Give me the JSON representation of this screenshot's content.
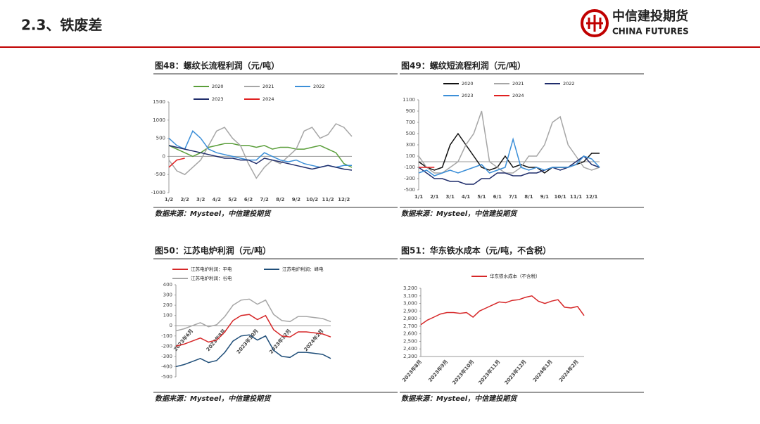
{
  "header": {
    "title": "2.3、铁废差",
    "logo_cn": "中信建投期货",
    "logo_en": "CHINA FUTURES"
  },
  "chart_data": [
    {
      "type": "line",
      "title": "图48：螺纹长流程利润（元/吨）",
      "source": "数据来源：Mysteel，中信建投期货",
      "categories": [
        "1/2",
        null,
        "2/2",
        null,
        "3/2",
        null,
        "4/2",
        null,
        "5/2",
        null,
        "6/2",
        null,
        "7/2",
        null,
        "8/2",
        null,
        "9/2",
        null,
        "10/2",
        null,
        "11/2",
        null,
        "12/2",
        null
      ],
      "series": [
        {
          "name": "2020",
          "color": "#5a9e3a",
          "values": [
            300,
            200,
            100,
            0,
            100,
            250,
            300,
            350,
            350,
            300,
            300,
            250,
            300,
            200,
            250,
            250,
            200,
            200,
            250,
            300,
            200,
            100,
            -200,
            -300
          ]
        },
        {
          "name": "2021",
          "color": "#a6a6a6",
          "values": [
            -100,
            -400,
            -500,
            -300,
            -100,
            300,
            700,
            800,
            500,
            300,
            -200,
            -600,
            -300,
            -100,
            -200,
            0,
            200,
            700,
            800,
            500,
            600,
            900,
            800,
            550
          ]
        },
        {
          "name": "2022",
          "color": "#3c8fd8",
          "values": [
            500,
            300,
            200,
            700,
            500,
            200,
            100,
            50,
            0,
            -50,
            -100,
            -100,
            100,
            0,
            -100,
            -150,
            -100,
            -200,
            -250,
            -300,
            -250,
            -300,
            -250,
            -250
          ]
        },
        {
          "name": "2023",
          "color": "#1f2d6b",
          "values": [
            300,
            250,
            200,
            150,
            100,
            50,
            0,
            -50,
            -50,
            -100,
            -100,
            -200,
            -50,
            -100,
            -150,
            -200,
            -250,
            -300,
            -350,
            -300,
            -250,
            -300,
            -350,
            -380
          ]
        },
        {
          "name": "2024",
          "color": "#e02020",
          "values": [
            -300,
            -100,
            -50,
            null,
            null,
            null,
            null,
            null,
            null,
            null,
            null,
            null,
            null,
            null,
            null,
            null,
            null,
            null,
            null,
            null,
            null,
            null,
            null,
            null
          ]
        }
      ],
      "ylim": [
        -1000,
        1500
      ],
      "yticks": [
        -1000,
        -500,
        0,
        500,
        1000,
        1500
      ]
    },
    {
      "type": "line",
      "title": "图49：螺纹短流程利润（元/吨）",
      "source": "数据来源：Mysteel，中信建投期货",
      "categories": [
        "1/1",
        null,
        "2/1",
        null,
        "3/1",
        null,
        "4/1",
        null,
        "5/1",
        null,
        "6/1",
        null,
        "7/1",
        null,
        "8/1",
        null,
        "9/1",
        null,
        "10/1",
        null,
        "11/1",
        null,
        "12/1",
        null
      ],
      "series": [
        {
          "name": "2020",
          "color": "#111111",
          "values": [
            0,
            -100,
            -150,
            -100,
            300,
            500,
            300,
            100,
            -100,
            -150,
            -100,
            100,
            -100,
            -50,
            -100,
            -100,
            -200,
            -100,
            -100,
            -100,
            -50,
            0,
            150,
            150
          ]
        },
        {
          "name": "2021",
          "color": "#a6a6a6",
          "values": [
            100,
            -100,
            -200,
            -200,
            -100,
            0,
            300,
            500,
            900,
            0,
            -100,
            -200,
            -200,
            -100,
            100,
            100,
            300,
            700,
            800,
            300,
            100,
            -100,
            -150,
            -100
          ]
        },
        {
          "name": "2022",
          "color": "#1f2d6b",
          "values": [
            -100,
            -200,
            -300,
            -300,
            -350,
            -350,
            -400,
            -400,
            -300,
            -300,
            -200,
            -200,
            -250,
            -250,
            -200,
            -200,
            -150,
            -100,
            -150,
            -100,
            0,
            100,
            -50,
            -100
          ]
        },
        {
          "name": "2023",
          "color": "#3c8fd8",
          "values": [
            -200,
            -150,
            -250,
            -200,
            -150,
            -200,
            -150,
            -100,
            -50,
            -200,
            -150,
            -100,
            400,
            -100,
            -150,
            -100,
            -150,
            -100,
            -100,
            -100,
            -50,
            100,
            50,
            -100
          ]
        },
        {
          "name": "2024",
          "color": "#e02020",
          "values": [
            -100,
            -100,
            -100,
            null,
            null,
            null,
            null,
            null,
            null,
            null,
            null,
            null,
            null,
            null,
            null,
            null,
            null,
            null,
            null,
            null,
            null,
            null,
            null,
            null
          ]
        }
      ],
      "ylim": [
        -500,
        1100
      ],
      "yticks": [
        -500,
        -300,
        -100,
        100,
        300,
        500,
        700,
        900,
        1100
      ]
    },
    {
      "type": "line",
      "title": "图50：江苏电炉利润（元/吨）",
      "source": "数据来源：Mysteel，中信建投期货",
      "categories": [
        null,
        null,
        "2023年6月",
        null,
        null,
        null,
        "2023年8月",
        null,
        null,
        null,
        "2023年10月",
        null,
        null,
        null,
        "2023年12月",
        null,
        null,
        null,
        "2024年2月",
        null
      ],
      "series": [
        {
          "name": "江苏电炉利润：平电",
          "color": "#d62728",
          "values": [
            -200,
            -180,
            -150,
            -120,
            -160,
            -140,
            -60,
            50,
            100,
            110,
            60,
            100,
            -40,
            -100,
            -110,
            -60,
            -60,
            -70,
            -80,
            -110
          ]
        },
        {
          "name": "江苏电炉利润：峰电",
          "color": "#1f4e79",
          "values": [
            -400,
            -380,
            -350,
            -320,
            -360,
            -340,
            -260,
            -150,
            -100,
            -90,
            -140,
            -100,
            -240,
            -300,
            -310,
            -260,
            -260,
            -270,
            -280,
            -320
          ]
        },
        {
          "name": "江苏电炉利润：谷电",
          "color": "#a6a6a6",
          "values": [
            -50,
            -30,
            0,
            30,
            -10,
            10,
            90,
            200,
            250,
            260,
            210,
            250,
            110,
            50,
            40,
            90,
            90,
            80,
            70,
            40
          ]
        }
      ],
      "ylim": [
        -500,
        400
      ],
      "yticks": [
        -500,
        -400,
        -300,
        -200,
        -100,
        0,
        100,
        200,
        300,
        400
      ]
    },
    {
      "type": "line",
      "title": "图51：华东铁水成本（元/吨，不含税）",
      "source": "数据来源：Mysteel，中信建投期货",
      "categories": [
        "2023年8月",
        null,
        null,
        null,
        "2023年9月",
        null,
        null,
        null,
        "2023年10月",
        null,
        null,
        null,
        "2023年11月",
        null,
        null,
        null,
        "2023年12月",
        null,
        null,
        null,
        "2024年1月",
        null,
        null,
        null,
        "2024年2月",
        null
      ],
      "series": [
        {
          "name": "华东铁水成本（不含税）",
          "color": "#d62728",
          "values": [
            2720,
            2780,
            2820,
            2860,
            2880,
            2880,
            2870,
            2880,
            2820,
            2900,
            2940,
            2980,
            3020,
            3010,
            3040,
            3050,
            3080,
            3100,
            3030,
            3000,
            3030,
            3050,
            2950,
            2940,
            2960,
            2840
          ]
        }
      ],
      "ylim": [
        2300,
        3200
      ],
      "yticks": [
        {
          "value": 2300,
          "label": "2,300"
        },
        {
          "value": 2400,
          "label": "2,400"
        },
        {
          "value": 2500,
          "label": "2,500"
        },
        {
          "value": 2600,
          "label": "2,600"
        },
        {
          "value": 2700,
          "label": "2,700"
        },
        {
          "value": 2800,
          "label": "2,800"
        },
        {
          "value": 2900,
          "label": "2,900"
        },
        {
          "value": 3000,
          "label": "3,000"
        },
        {
          "value": 3100,
          "label": "3,100"
        },
        {
          "value": 3200,
          "label": "3,200"
        }
      ]
    }
  ]
}
